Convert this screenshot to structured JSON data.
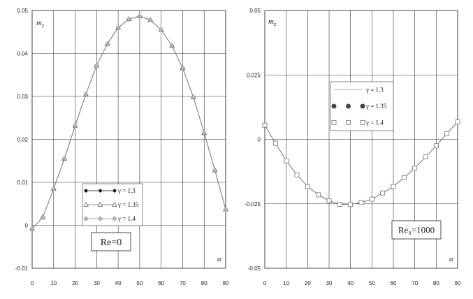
{
  "chart_data": [
    {
      "type": "line",
      "ylabel": "m_z",
      "ylabel_main": "m",
      "ylabel_sub": "z",
      "xlabel": "α",
      "xlim": [
        0,
        90
      ],
      "ylim": [
        -0.01,
        0.05
      ],
      "x_ticks": [
        "0",
        "10",
        "20",
        "30",
        "40",
        "50",
        "60",
        "70",
        "80",
        "90"
      ],
      "y_ticks": [
        "-0.01",
        "0",
        "0.01",
        "0.02",
        "0.03",
        "0.04",
        "0.05"
      ],
      "grid": true,
      "legend_position": "lower-center",
      "annotation": "Re=0",
      "x": [
        0,
        5,
        10,
        15,
        20,
        25,
        30,
        35,
        40,
        45,
        50,
        55,
        60,
        65,
        70,
        75,
        80,
        85,
        90
      ],
      "series": [
        {
          "name": "γ = 1.3",
          "marker": "diamond-filled",
          "color": "#111111",
          "values": [
            -0.0008,
            0.0019,
            0.0085,
            0.0155,
            0.0232,
            0.0305,
            0.0372,
            0.0422,
            0.046,
            0.048,
            0.0487,
            0.0478,
            0.0455,
            0.0418,
            0.0366,
            0.0298,
            0.0215,
            0.0128,
            0.0037
          ]
        },
        {
          "name": "γ = 1.35",
          "marker": "triangle-open",
          "color": "#666666",
          "values": [
            -0.0008,
            0.0019,
            0.0085,
            0.0155,
            0.0232,
            0.0305,
            0.0372,
            0.0422,
            0.046,
            0.048,
            0.0487,
            0.0478,
            0.0455,
            0.0418,
            0.0366,
            0.0298,
            0.0215,
            0.0128,
            0.0037
          ]
        },
        {
          "name": "γ = 1.4",
          "marker": "diamond-gray",
          "color": "#999999",
          "values": [
            -0.0008,
            0.0019,
            0.0085,
            0.0155,
            0.0232,
            0.0305,
            0.0372,
            0.0422,
            0.046,
            0.048,
            0.0487,
            0.0478,
            0.0455,
            0.0418,
            0.0366,
            0.0298,
            0.0215,
            0.0128,
            0.0037
          ]
        }
      ]
    },
    {
      "type": "line",
      "ylabel": "m_z",
      "ylabel_main": "m",
      "ylabel_sub": "z",
      "xlabel": "α",
      "xlim": [
        0,
        90
      ],
      "ylim": [
        -0.05,
        0.05
      ],
      "x_ticks": [
        "0",
        "10",
        "20",
        "30",
        "40",
        "50",
        "60",
        "70",
        "80",
        "90"
      ],
      "y_ticks": [
        "0.05",
        "0.025",
        "0",
        "-0.025",
        "-0.05"
      ],
      "grid": true,
      "legend_position": "upper-center",
      "annotation": "Re₀=1000",
      "x": [
        0,
        5,
        10,
        15,
        20,
        25,
        30,
        35,
        40,
        45,
        50,
        55,
        60,
        65,
        70,
        75,
        80,
        85,
        90
      ],
      "series": [
        {
          "name": "γ = 1.3",
          "marker": "none",
          "color": "#888888",
          "values": [
            0.0055,
            -0.0015,
            -0.0083,
            -0.0138,
            -0.0183,
            -0.0215,
            -0.0238,
            -0.0252,
            -0.0253,
            -0.0245,
            -0.0232,
            -0.0208,
            -0.0183,
            -0.0148,
            -0.0112,
            -0.0068,
            -0.0025,
            0.0022,
            0.0068
          ]
        },
        {
          "name": "γ = 1.35",
          "marker": "circle-filled",
          "color": "#444444",
          "values": [
            0.0055,
            -0.0015,
            -0.0083,
            -0.0138,
            -0.0183,
            -0.0215,
            -0.0238,
            -0.0252,
            -0.0253,
            -0.0245,
            -0.0232,
            -0.0208,
            -0.0183,
            -0.0148,
            -0.0112,
            -0.0068,
            -0.0025,
            0.0022,
            0.0068
          ]
        },
        {
          "name": "γ = 1.4",
          "marker": "square-open",
          "color": "#777777",
          "values": [
            0.0055,
            -0.0015,
            -0.0083,
            -0.0138,
            -0.0183,
            -0.0215,
            -0.0238,
            -0.0252,
            -0.0253,
            -0.0245,
            -0.0232,
            -0.0208,
            -0.0183,
            -0.0148,
            -0.0112,
            -0.0068,
            -0.0025,
            0.0022,
            0.0068
          ]
        }
      ]
    }
  ]
}
